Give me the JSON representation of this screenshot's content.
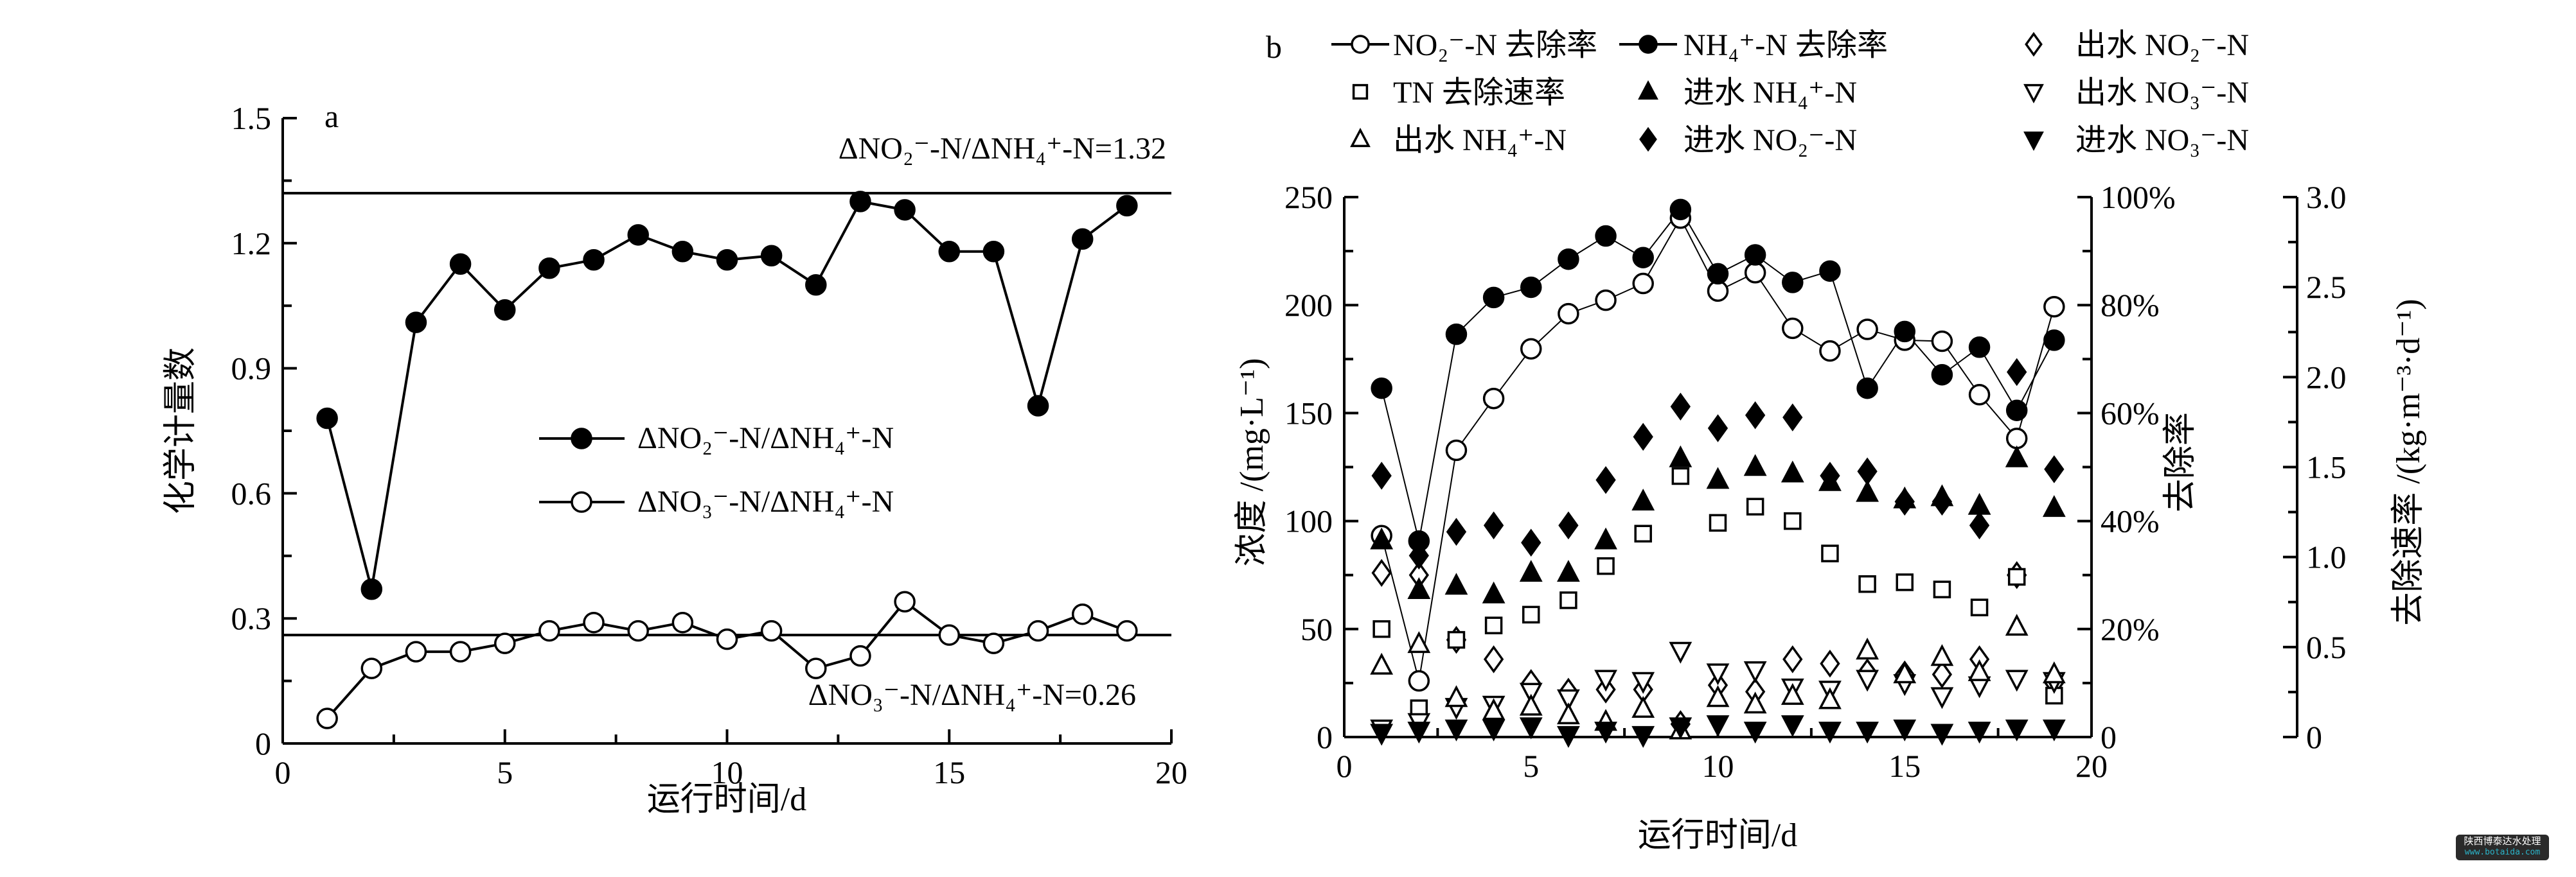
{
  "chart_data": [
    {
      "panel": "a",
      "type": "line",
      "xlabel": "运行时间/d",
      "ylabel": "化学计量数",
      "xlim": [
        0,
        20
      ],
      "ylim": [
        0,
        1.5
      ],
      "xticks": [
        0,
        5,
        10,
        15,
        20
      ],
      "yticks": [
        0,
        0.3,
        0.6,
        0.9,
        1.2,
        1.5
      ],
      "ytick_labels": [
        "0",
        "0.3",
        "0.6",
        "0.9",
        "1.2",
        "1.5"
      ],
      "x": [
        1,
        2,
        3,
        4,
        5,
        6,
        7,
        8,
        9,
        10,
        11,
        12,
        13,
        14,
        15,
        16,
        17,
        18,
        19
      ],
      "series": [
        {
          "name": "ΔNO₂⁻-N/ΔNH₄⁺-N",
          "marker": "filled-circle",
          "values": [
            0.78,
            0.37,
            1.01,
            1.15,
            1.04,
            1.14,
            1.16,
            1.22,
            1.18,
            1.16,
            1.17,
            1.1,
            1.3,
            1.28,
            1.18,
            1.18,
            0.81,
            1.21,
            1.29
          ]
        },
        {
          "name": "ΔNO₃⁻-N/ΔNH₄⁺-N",
          "marker": "open-circle",
          "values": [
            0.06,
            0.18,
            0.22,
            0.22,
            0.24,
            0.27,
            0.29,
            0.27,
            0.29,
            0.25,
            0.27,
            0.18,
            0.21,
            0.34,
            0.26,
            0.24,
            0.27,
            0.31,
            0.27
          ]
        }
      ],
      "reference_lines": [
        {
          "value": 1.32,
          "label": "ΔNO₂⁻-N/ΔNH₄⁺-N=1.32"
        },
        {
          "value": 0.26,
          "label": "ΔNO₃⁻-N/ΔNH₄⁺-N=0.26"
        }
      ],
      "legend": "center-left",
      "grid": false
    },
    {
      "panel": "b",
      "type": "scatter",
      "xlabel": "运行时间/d",
      "ylabel": "浓度 /(mg·L⁻¹)",
      "y2label": "去除率",
      "y3label": "去除速率 /(kg·m⁻³·d⁻¹)",
      "xlim": [
        0,
        20
      ],
      "ylim": [
        0,
        250
      ],
      "y2lim": [
        0,
        100
      ],
      "y3lim": [
        0,
        3.0
      ],
      "xticks": [
        0,
        5,
        10,
        15,
        20
      ],
      "yticks": [
        0,
        50,
        100,
        150,
        200,
        250
      ],
      "y2ticks": [
        0,
        20,
        40,
        60,
        80,
        100
      ],
      "y2tick_labels": [
        "0",
        "20%",
        "40%",
        "60%",
        "80%",
        "100%"
      ],
      "y3ticks": [
        0,
        0.5,
        1.0,
        1.5,
        2.0,
        2.5,
        3.0
      ],
      "y3tick_labels": [
        "0",
        "0.5",
        "1.0",
        "1.5",
        "2.0",
        "2.5",
        "3.0"
      ],
      "x": [
        1,
        2,
        3,
        4,
        5,
        6,
        7,
        8,
        9,
        10,
        11,
        12,
        13,
        14,
        15,
        16,
        17,
        18,
        19
      ],
      "series": [
        {
          "name": "NO₂⁻-N 去除率",
          "axis": "y2",
          "marker": "open-circle",
          "line": true,
          "values": [
            37.3,
            10.4,
            53.1,
            62.7,
            71.9,
            78.4,
            80.9,
            84.0,
            96.1,
            82.6,
            86.0,
            75.7,
            71.5,
            75.5,
            73.5,
            73.3,
            63.4,
            55.3,
            79.7
          ]
        },
        {
          "name": "NH₄⁺-N 去除率",
          "axis": "y2",
          "marker": "filled-circle",
          "line": true,
          "values": [
            64.6,
            36.3,
            74.6,
            81.4,
            83.3,
            88.5,
            92.8,
            88.8,
            97.7,
            85.8,
            89.3,
            84.2,
            86.3,
            64.6,
            75.1,
            67.1,
            72.2,
            60.5,
            73.5
          ]
        },
        {
          "name": "出水 NO₂⁻-N",
          "axis": "y",
          "marker": "open-diamond",
          "values": [
            76,
            75,
            45,
            36,
            25,
            21,
            22,
            22,
            6,
            24,
            21,
            36,
            34,
            30,
            29,
            29,
            36,
            75,
            25
          ]
        },
        {
          "name": "TN 去除速率",
          "axis": "y3",
          "marker": "open-square",
          "values": [
            0.6,
            0.16,
            0.54,
            0.62,
            0.68,
            0.76,
            0.95,
            1.13,
            1.45,
            1.19,
            1.28,
            1.2,
            1.02,
            0.85,
            0.86,
            0.82,
            0.72,
            0.89,
            0.23
          ]
        },
        {
          "name": "进水 NH₄⁺-N",
          "axis": "y",
          "marker": "filled-triangle-up",
          "values": [
            91,
            68,
            70,
            66,
            76,
            76,
            91,
            109,
            129,
            119,
            125,
            122,
            118,
            113,
            110,
            111,
            107,
            129,
            106
          ]
        },
        {
          "name": "出水 NO₃⁻-N",
          "axis": "y",
          "marker": "open-triangle-down",
          "values": [
            4,
            7,
            14,
            15,
            21,
            18,
            27,
            26,
            40,
            30,
            31,
            23,
            22,
            27,
            25,
            19,
            24,
            27,
            26
          ]
        },
        {
          "name": "出水 NH₄⁺-N",
          "axis": "y",
          "marker": "open-triangle-up",
          "values": [
            33,
            43,
            18,
            12,
            14,
            10,
            7,
            13,
            3,
            18,
            15,
            19,
            17,
            40,
            29,
            37,
            30,
            51,
            29
          ]
        },
        {
          "name": "进水 NO₂⁻-N",
          "axis": "y",
          "marker": "filled-diamond",
          "values": [
            121,
            84,
            95,
            98,
            90,
            98,
            119,
            139,
            153,
            143,
            149,
            148,
            121,
            123,
            109,
            109,
            98,
            169,
            124
          ]
        },
        {
          "name": "进水 NO₃⁻-N",
          "axis": "y",
          "marker": "filled-triangle-down",
          "values": [
            2,
            3,
            4,
            4,
            5,
            1,
            3,
            1,
            5,
            6,
            3,
            6,
            3,
            3,
            4,
            2,
            3,
            4,
            4
          ]
        }
      ],
      "legend": "top",
      "grid": false
    }
  ],
  "watermark": {
    "line1": "陕西博泰达水处理",
    "line2": "www.botaida.com"
  }
}
